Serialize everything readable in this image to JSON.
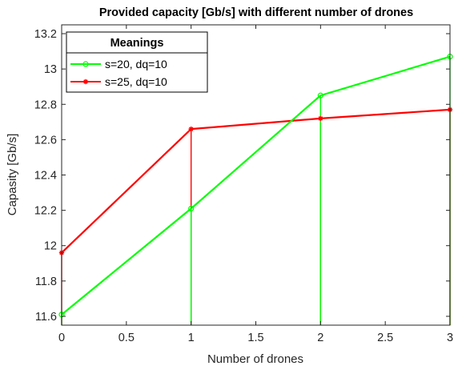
{
  "chart_data": {
    "type": "line",
    "title": "Provided capacity [Gb/s] with different number of drones",
    "xlabel": "Number of drones",
    "ylabel": "Capasity [Gb/s]",
    "xlim": [
      0,
      3
    ],
    "ylim": [
      11.55,
      13.25
    ],
    "xticks": [
      "0",
      "0.5",
      "1",
      "1.5",
      "2",
      "2.5",
      "3"
    ],
    "yticks": [
      "11.6",
      "11.8",
      "12",
      "12.2",
      "12.4",
      "12.6",
      "12.8",
      "13",
      "13.2"
    ],
    "x": [
      0,
      1,
      2,
      3
    ],
    "series": [
      {
        "name": "s=20, dq=10",
        "color": "#00ff00",
        "marker": "circle",
        "values": [
          11.61,
          12.21,
          12.85,
          13.07
        ]
      },
      {
        "name": "s=25, dq=10",
        "color": "#ff0000",
        "marker": "asterisk",
        "values": [
          11.96,
          12.66,
          12.72,
          12.77
        ]
      }
    ],
    "stems": true,
    "grid": false,
    "legend": {
      "title": "Meanings",
      "placement": "top-left"
    }
  }
}
